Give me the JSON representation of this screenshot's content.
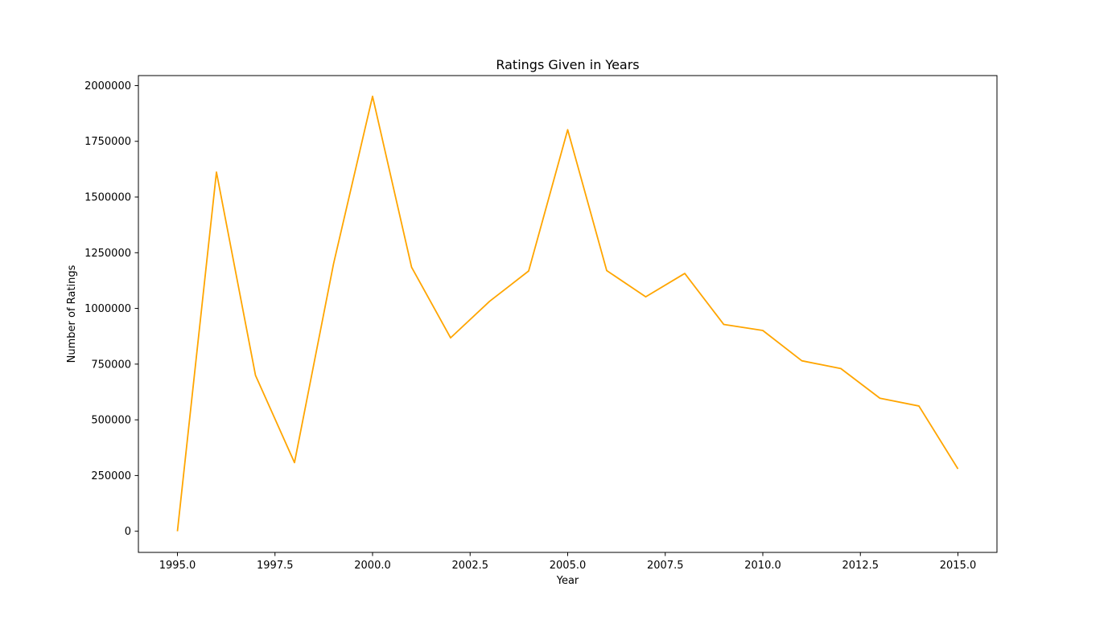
{
  "chart_data": {
    "type": "line",
    "title": "Ratings Given in Years",
    "xlabel": "Year",
    "ylabel": "Number of Ratings",
    "xlim": [
      1994.0,
      2016.0
    ],
    "ylim": [
      -95000,
      2045000
    ],
    "grid": false,
    "legend": "none",
    "x_ticks": [
      1995.0,
      1997.5,
      2000.0,
      2002.5,
      2005.0,
      2007.5,
      2010.0,
      2012.5,
      2015.0
    ],
    "x_tick_labels": [
      "1995.0",
      "1997.5",
      "2000.0",
      "2002.5",
      "2005.0",
      "2007.5",
      "2010.0",
      "2012.5",
      "2015.0"
    ],
    "y_ticks": [
      0,
      250000,
      500000,
      750000,
      1000000,
      1250000,
      1500000,
      1750000,
      2000000
    ],
    "y_tick_labels": [
      "0",
      "250000",
      "500000",
      "750000",
      "1000000",
      "1250000",
      "1500000",
      "1750000",
      "2000000"
    ],
    "series": [
      {
        "color": "#ffa500",
        "x": [
          1995,
          1996,
          1997,
          1998,
          1999,
          2000,
          2001,
          2002,
          2003,
          2004,
          2005,
          2006,
          2007,
          2008,
          2009,
          2010,
          2011,
          2012,
          2013,
          2014,
          2015
        ],
        "y": [
          3,
          1612000,
          700000,
          308000,
          1200000,
          1952000,
          1185000,
          868000,
          1032000,
          1168000,
          1802000,
          1170000,
          1052000,
          1157000,
          928000,
          901000,
          765000,
          730000,
          597000,
          562000,
          280000
        ]
      }
    ]
  }
}
